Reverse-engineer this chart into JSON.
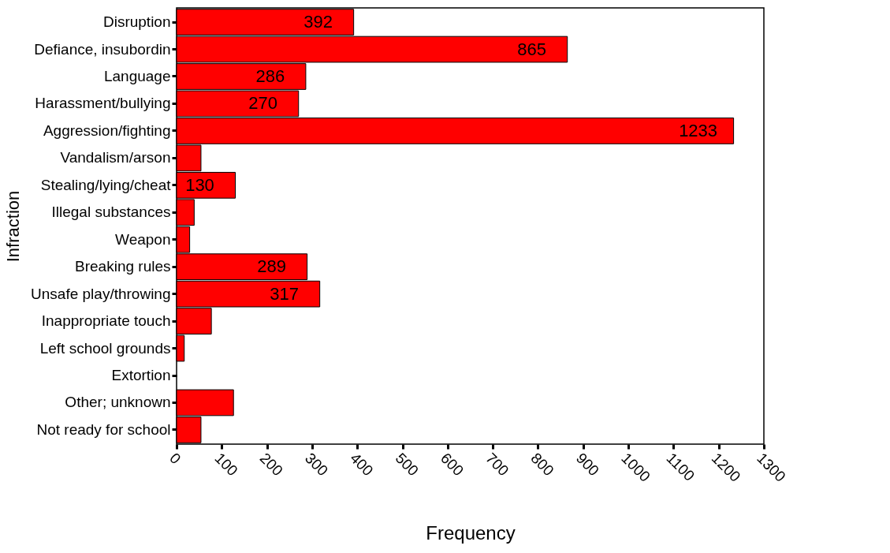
{
  "chart_data": {
    "type": "bar",
    "orientation": "horizontal",
    "xlabel": "Frequency",
    "ylabel": "Infraction",
    "categories": [
      "Disruption",
      "Defiance, insubordin",
      "Language",
      "Harassment/bullying",
      "Aggression/fighting",
      "Vandalism/arson",
      "Stealing/lying/cheat",
      "Illegal substances",
      "Weapon",
      "Breaking rules",
      "Unsafe play/throwing",
      "Inappropriate touch",
      "Left school grounds",
      "Extortion",
      "Other; unknown",
      "Not ready for school"
    ],
    "values": [
      392,
      865,
      286,
      270,
      1233,
      54,
      130,
      39,
      29,
      289,
      317,
      77,
      17,
      0,
      126,
      54
    ],
    "value_labels": [
      "392",
      "865",
      "286",
      "270",
      "1233",
      null,
      "130",
      null,
      null,
      "289",
      "317",
      null,
      null,
      null,
      null,
      null
    ],
    "color": "#ff0000",
    "xlim": [
      0,
      1300
    ],
    "xticks": [
      0,
      100,
      200,
      300,
      400,
      500,
      600,
      700,
      800,
      900,
      1000,
      1100,
      1200,
      1300
    ],
    "grid": false
  }
}
